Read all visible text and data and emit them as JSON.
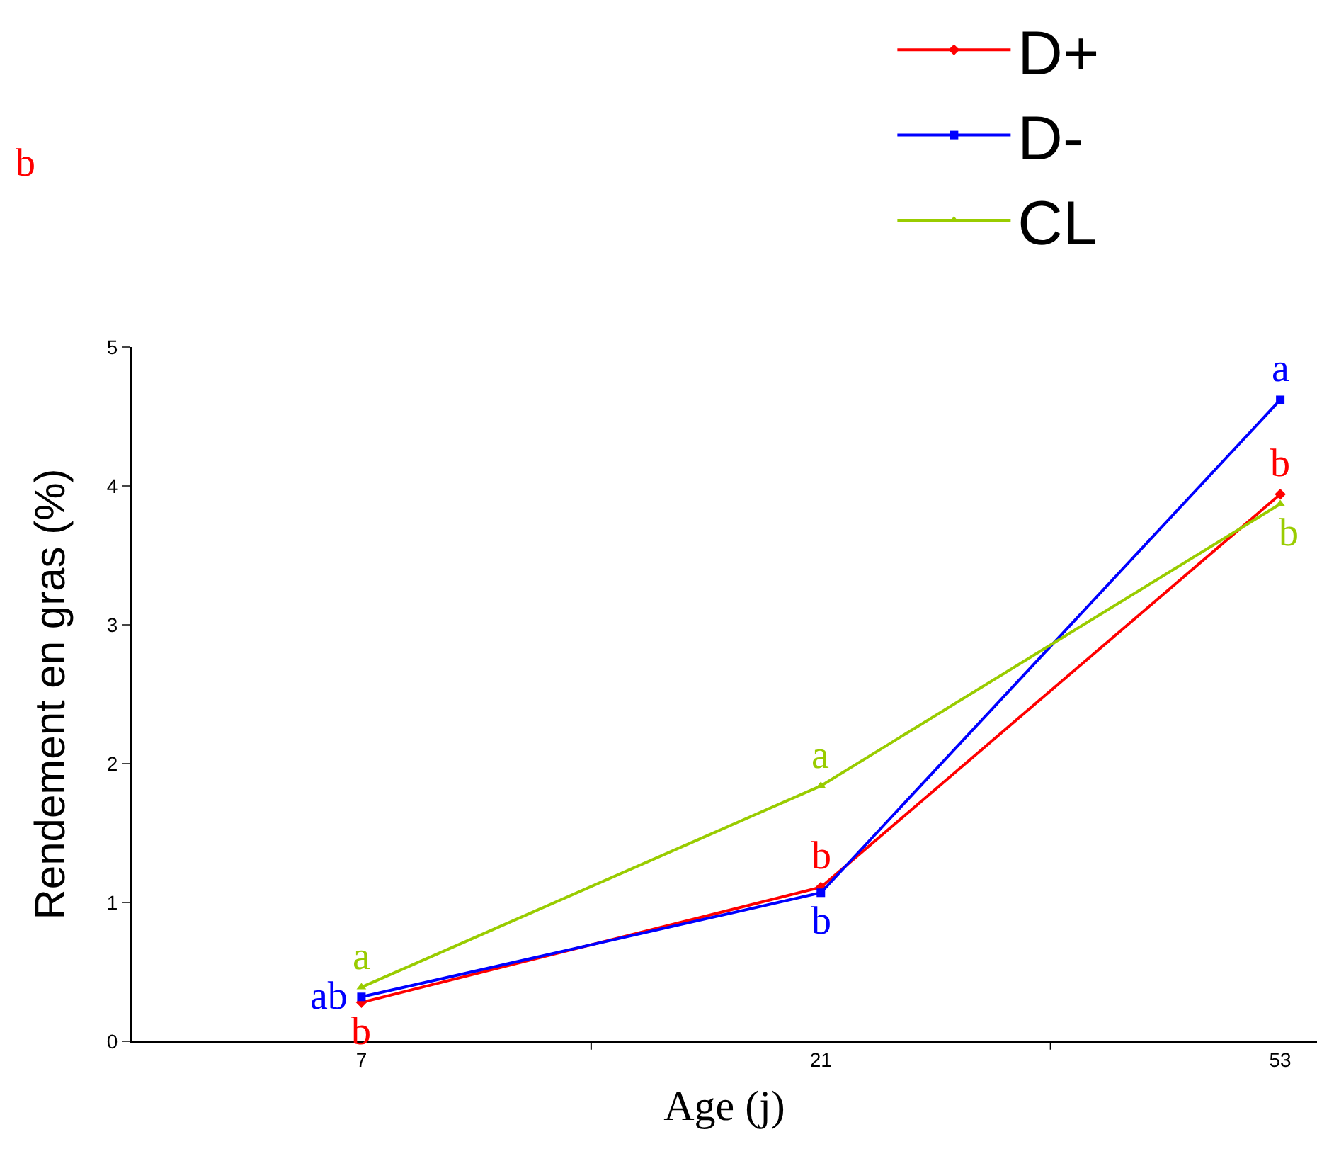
{
  "chart_data": {
    "type": "line",
    "xlabel": "Age (j)",
    "ylabel": "Rendement en gras (%)",
    "categories": [
      "7",
      "21",
      "53"
    ],
    "series": [
      {
        "name": "D+",
        "color": "#ff0000",
        "values": [
          0.28,
          1.11,
          3.94
        ],
        "marker": "diamond"
      },
      {
        "name": "D-",
        "color": "#0000ff",
        "values": [
          0.32,
          1.07,
          4.62
        ],
        "marker": "square"
      },
      {
        "name": "CL",
        "color": "#99cc00",
        "values": [
          0.39,
          1.84,
          3.87
        ],
        "marker": "triangle"
      }
    ],
    "ylim": [
      0,
      5
    ],
    "yticks": [
      0,
      1,
      2,
      3,
      4,
      5
    ],
    "grid": false,
    "legend": "top right",
    "line_style": "solid",
    "annotations": [
      "b",
      {
        "text": "a",
        "x": "7",
        "y": 0.39
      },
      {
        "text": "ab",
        "x": "7",
        "y": 0.32
      },
      {
        "text": "b",
        "x": "7",
        "y": 0.28
      },
      {
        "text": "a",
        "x": "21",
        "y": 1.84
      },
      {
        "text": "b",
        "x": "21",
        "y": 1.11
      },
      {
        "text": "b",
        "x": "21",
        "y": 1.07
      },
      {
        "text": "a",
        "x": "53",
        "y": 4.62
      },
      {
        "text": "b",
        "x": "53",
        "y": 3.94
      },
      {
        "text": "b",
        "x": "53",
        "y": 3.87
      }
    ]
  }
}
